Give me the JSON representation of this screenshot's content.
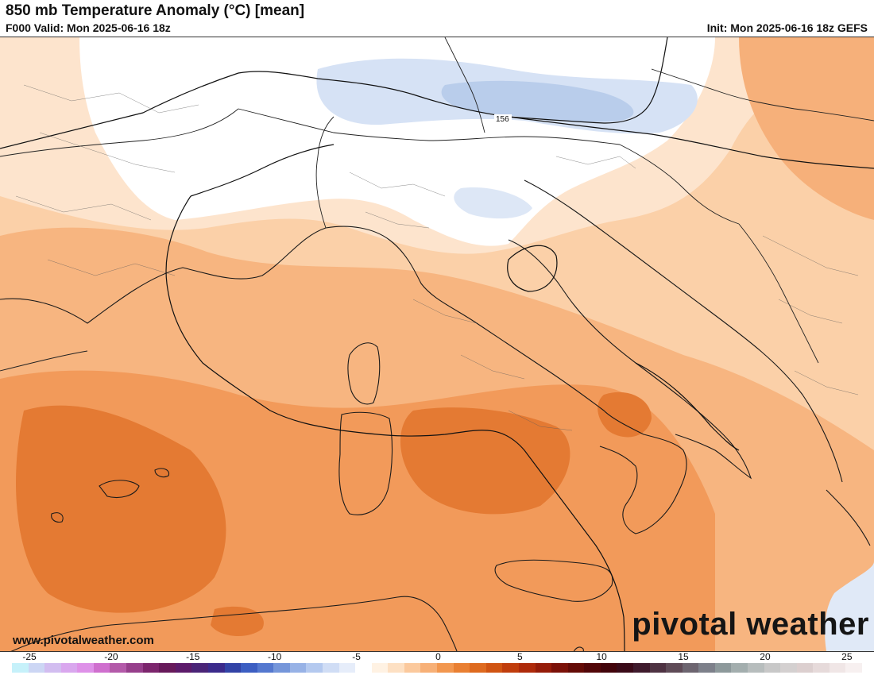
{
  "header": {
    "title": "850 mb Temperature Anomaly (°C) [mean]",
    "valid": "F000 Valid: Mon 2025-06-16 18z",
    "init": "Init: Mon 2025-06-16 18z GEFS"
  },
  "map": {
    "contour_label": "156"
  },
  "brand": {
    "logo": "pivotal weather",
    "website": "www.pivotalweather.com"
  },
  "colorbar": {
    "min": -25,
    "max": 27,
    "tick_labels": [
      "-25",
      "-20",
      "-15",
      "-10",
      "-5",
      "0",
      "5",
      "10",
      "15",
      "20",
      "25"
    ],
    "tick_values": [
      -25,
      -20,
      -15,
      -10,
      -5,
      0,
      5,
      10,
      15,
      20,
      25
    ],
    "colors": [
      "#c6f1fa",
      "#ccd6f4",
      "#d2bdf0",
      "#d9a7ee",
      "#de91e8",
      "#cf6fce",
      "#b35aa9",
      "#963f8b",
      "#7c256d",
      "#67195a",
      "#5c1a6a",
      "#4a2477",
      "#3b2a8b",
      "#3243a6",
      "#3c5ec2",
      "#5478cf",
      "#7596da",
      "#97b2e6",
      "#b4c9ef",
      "#d0ddf5",
      "#e6edfa",
      "#ffffff",
      "#fff2e3",
      "#fde0c3",
      "#fbc99d",
      "#f7b077",
      "#f2974f",
      "#e97f32",
      "#de6a1f",
      "#d05412",
      "#c03d0c",
      "#ae2a0a",
      "#951c09",
      "#7b1108",
      "#640b06",
      "#520608",
      "#42040b",
      "#3a0a18",
      "#3f1a2c",
      "#4e3242",
      "#5f4b57",
      "#6d6570",
      "#7d808a",
      "#8d999b",
      "#a3aeae",
      "#b7bdbd",
      "#c8c8c8",
      "#d4d0d0",
      "#dccfcf",
      "#e6dada",
      "#f0e6e6",
      "#f7f0f0"
    ]
  }
}
